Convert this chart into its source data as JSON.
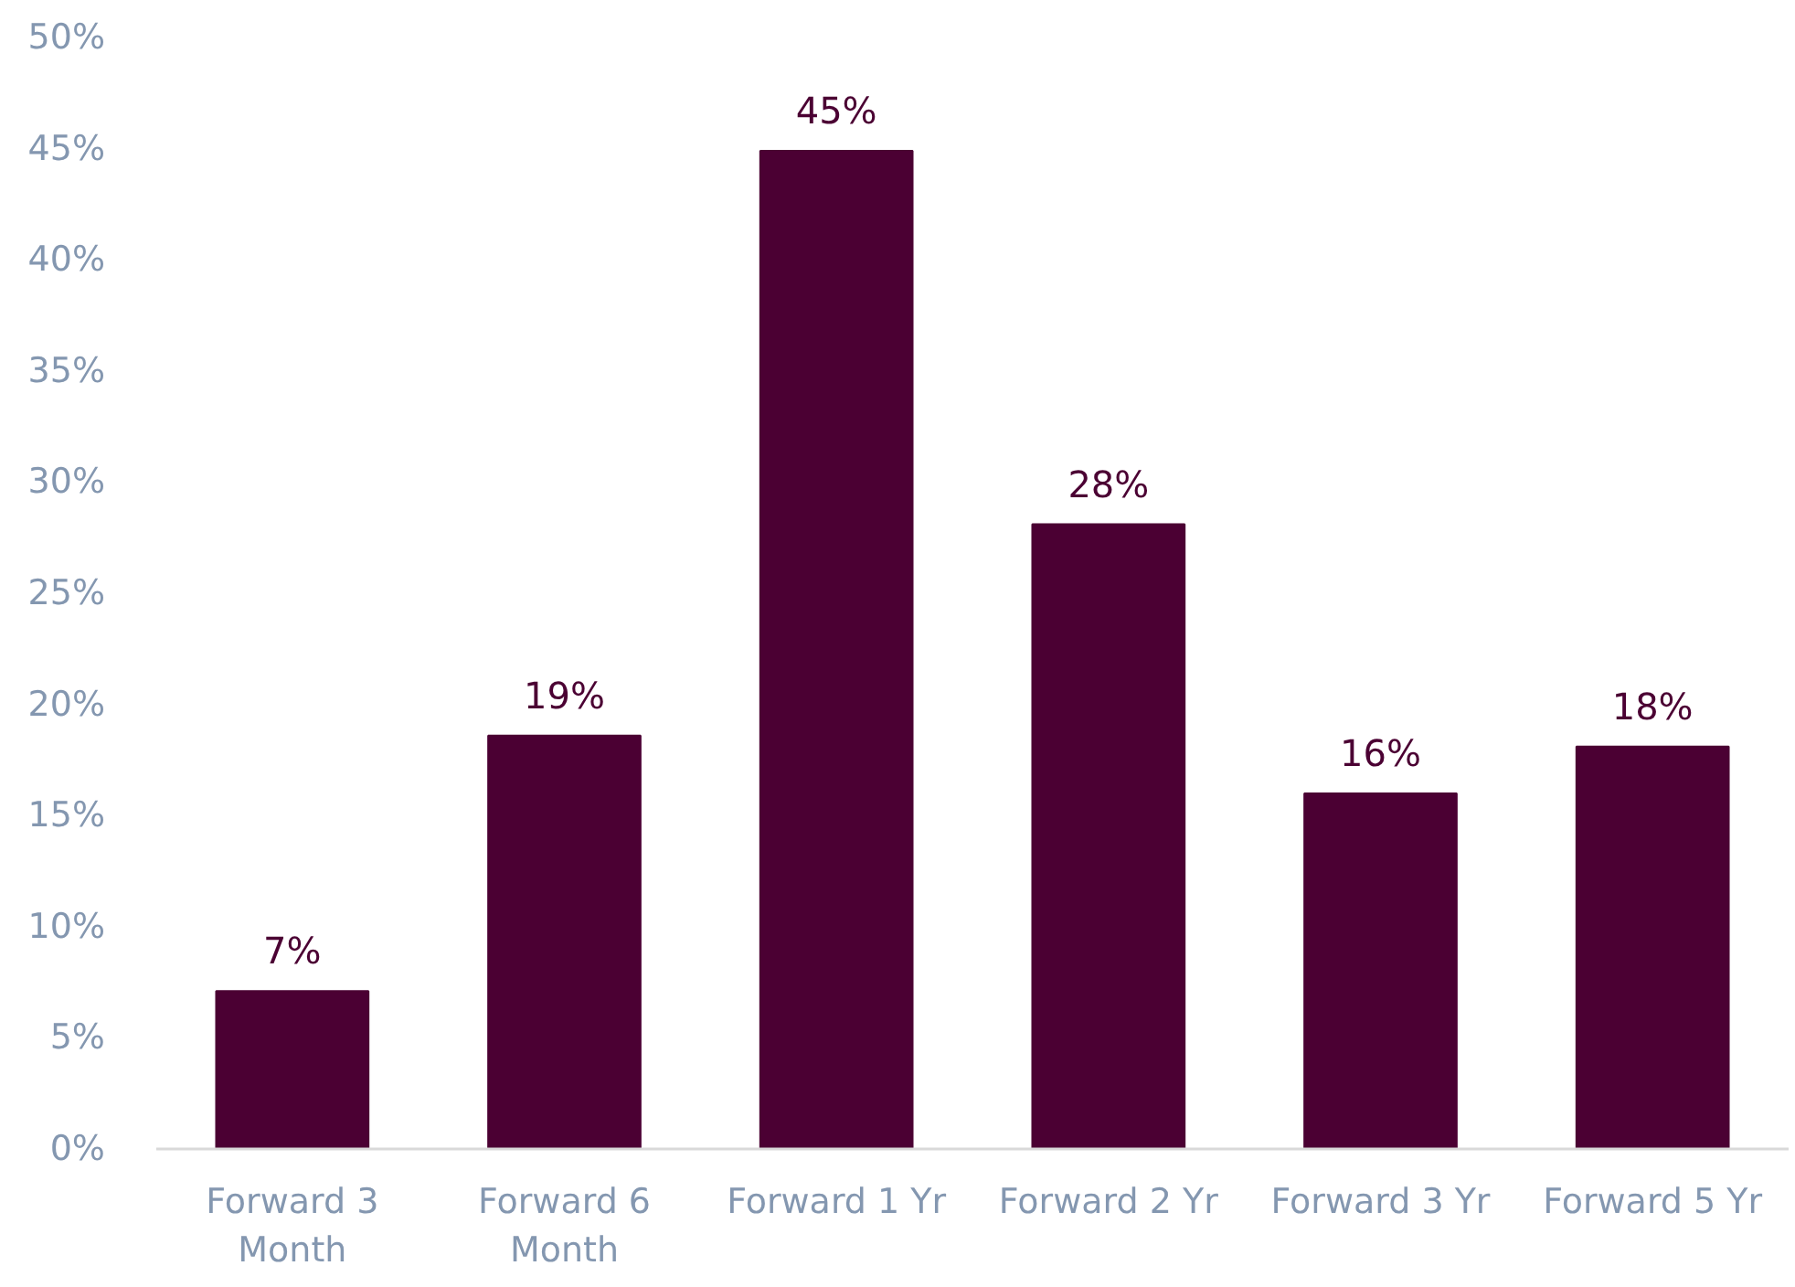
{
  "chart_data": {
    "type": "bar",
    "categories": [
      "Forward 3 Month",
      "Forward 6 Month",
      "Forward 1 Yr",
      "Forward 2 Yr",
      "Forward 3 Yr",
      "Forward 5 Yr"
    ],
    "values": [
      7.1,
      18.6,
      44.9,
      28.1,
      16.0,
      18.1
    ],
    "value_labels": [
      "7%",
      "19%",
      "45%",
      "28%",
      "16%",
      "18%"
    ],
    "color": "#4b0033",
    "ylim": [
      0,
      50
    ],
    "yticks": [
      {
        "value": 0,
        "label": "0%"
      },
      {
        "value": 5,
        "label": "5%"
      },
      {
        "value": 10,
        "label": "10%"
      },
      {
        "value": 15,
        "label": "15%"
      },
      {
        "value": 20,
        "label": "20%"
      },
      {
        "value": 25,
        "label": "25%"
      },
      {
        "value": 30,
        "label": "30%"
      },
      {
        "value": 35,
        "label": "35%"
      },
      {
        "value": 40,
        "label": "40%"
      },
      {
        "value": 45,
        "label": "45%"
      },
      {
        "value": 50,
        "label": "50%"
      }
    ],
    "grid": false
  }
}
